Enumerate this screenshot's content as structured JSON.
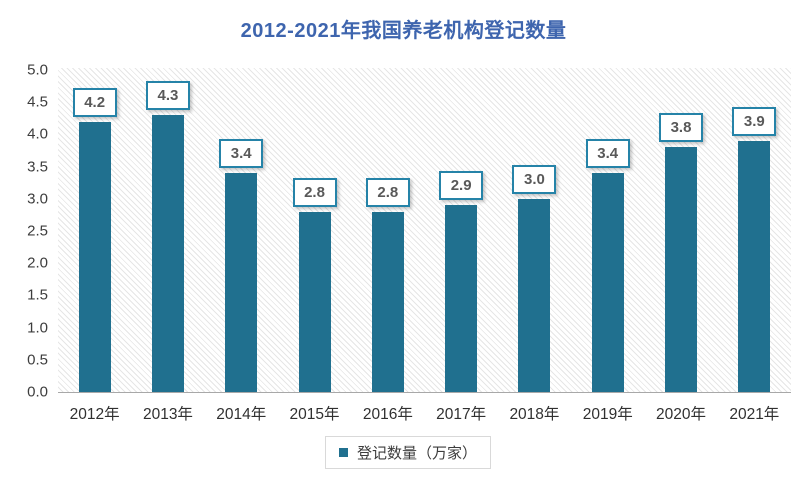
{
  "header": {
    "title": "2012-2021年我国养老机构登记数量"
  },
  "legend": {
    "label": "登记数量（万家）"
  },
  "colors": {
    "title": "#3E65AE",
    "bar": "#20708F",
    "label_box_border": "#2583A8",
    "data_label_text": "#595959",
    "axis_line": "#a8a8a8",
    "hatch_line": "#e6e6e6",
    "tick_text": "#3d3d3d",
    "xtick_text": "#303030"
  },
  "chart_data": {
    "type": "bar",
    "title": "2012-2021年我国养老机构登记数量",
    "categories": [
      "2012年",
      "2013年",
      "2014年",
      "2015年",
      "2016年",
      "2017年",
      "2018年",
      "2019年",
      "2020年",
      "2021年"
    ],
    "values": [
      4.2,
      4.3,
      3.4,
      2.8,
      2.8,
      2.9,
      3.0,
      3.4,
      3.8,
      3.9
    ],
    "data_labels": [
      "4.2",
      "4.3",
      "3.4",
      "2.8",
      "2.8",
      "2.9",
      "3.0",
      "3.4",
      "3.8",
      "3.9"
    ],
    "series_name": "登记数量（万家）",
    "xlabel": "",
    "ylabel": "",
    "ylim": [
      0.0,
      5.0
    ],
    "ytick_step": 0.5,
    "yticks": [
      "5.0",
      "4.5",
      "4.0",
      "3.5",
      "3.0",
      "2.5",
      "2.0",
      "1.5",
      "1.0",
      "0.5",
      "0.0"
    ],
    "grid": false,
    "legend_position": "bottom",
    "plot_background": "diagonal-hatch"
  }
}
